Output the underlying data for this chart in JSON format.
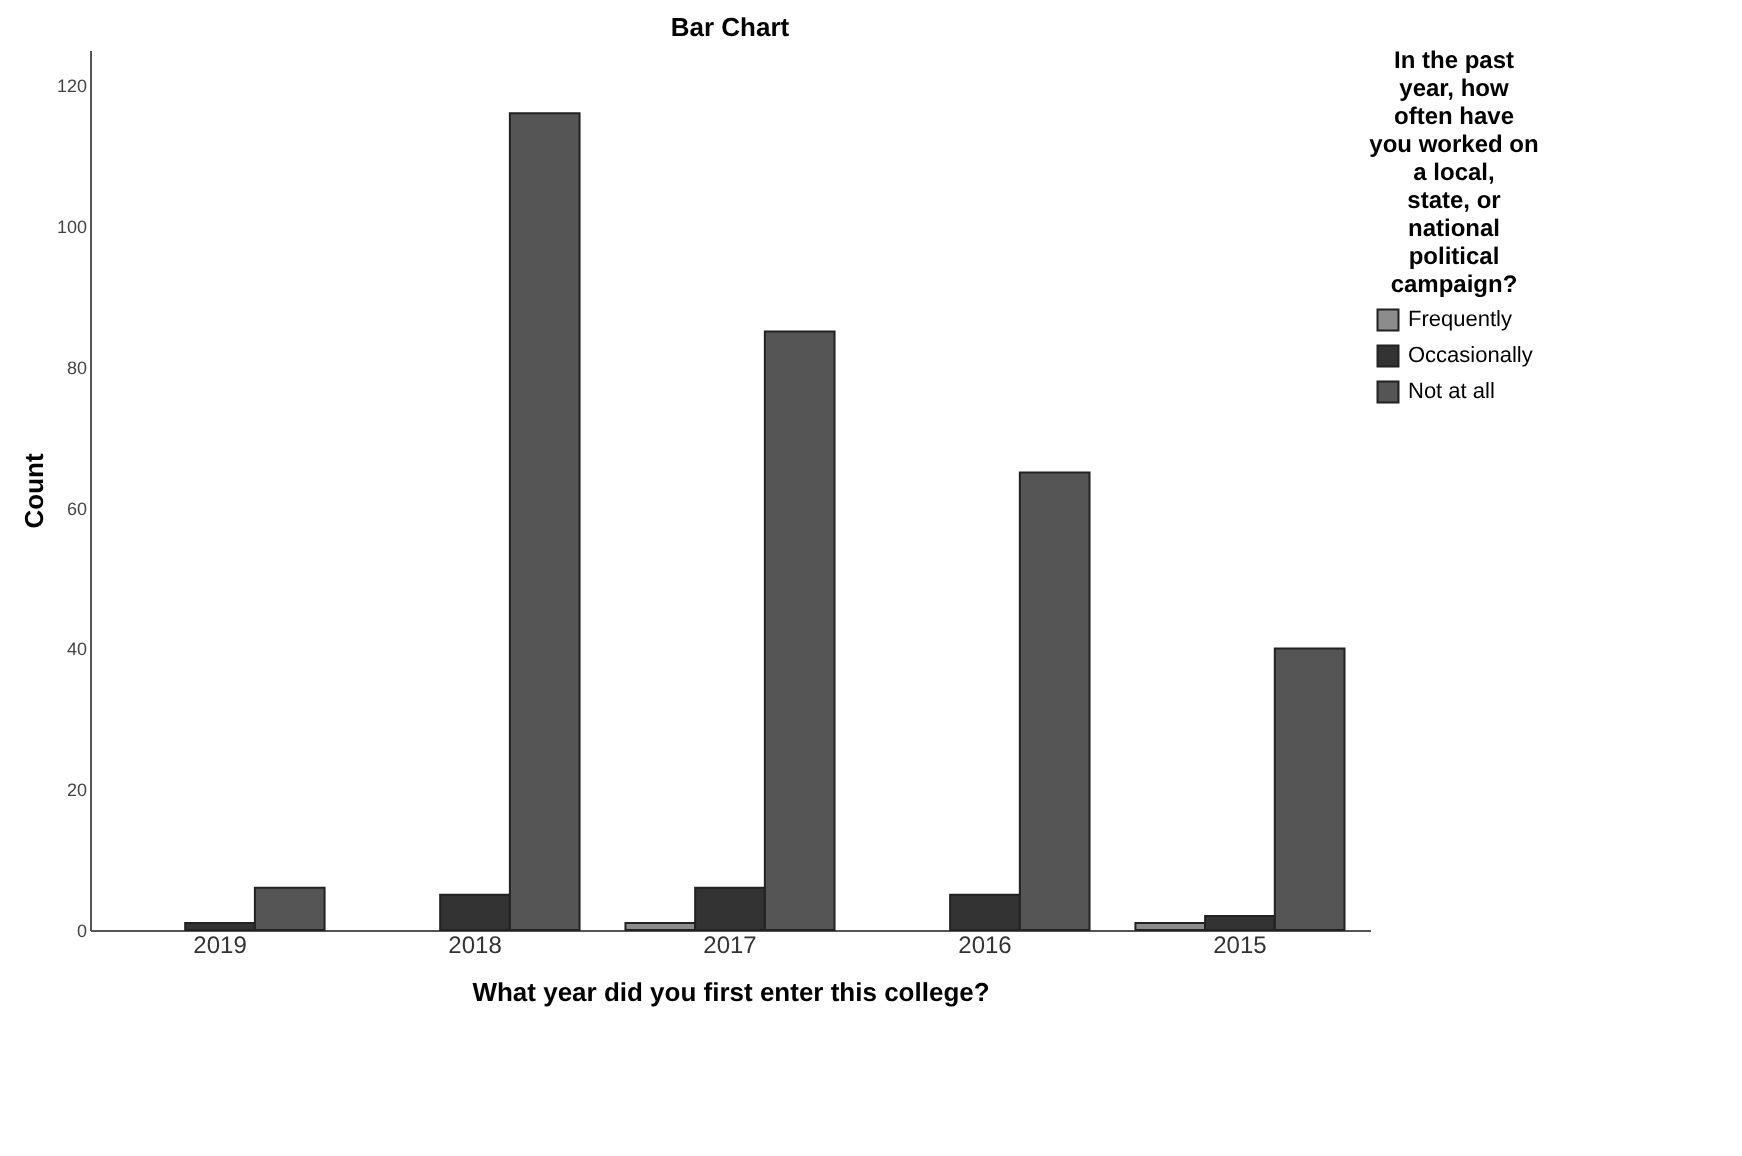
{
  "chart_data": {
    "type": "bar",
    "title": "Bar Chart",
    "xlabel": "What year did you first enter this college?",
    "ylabel": "Count",
    "legend_title": "In the past year, how often have you worked on a local, state, or national political campaign?",
    "categories": [
      "2019",
      "2018",
      "2017",
      "2016",
      "2015"
    ],
    "series": [
      {
        "name": "Frequently",
        "color": "#8c8c8c",
        "values": [
          null,
          null,
          1,
          null,
          1
        ]
      },
      {
        "name": "Occasionally",
        "color": "#333333",
        "values": [
          1,
          5,
          6,
          5,
          2
        ]
      },
      {
        "name": "Not at all",
        "color": "#555555",
        "values": [
          6,
          116,
          85,
          65,
          40
        ]
      }
    ],
    "ylim": [
      0,
      125
    ],
    "yticks": [
      0,
      20,
      40,
      60,
      80,
      100,
      120
    ],
    "grid": false,
    "legend": "right"
  }
}
